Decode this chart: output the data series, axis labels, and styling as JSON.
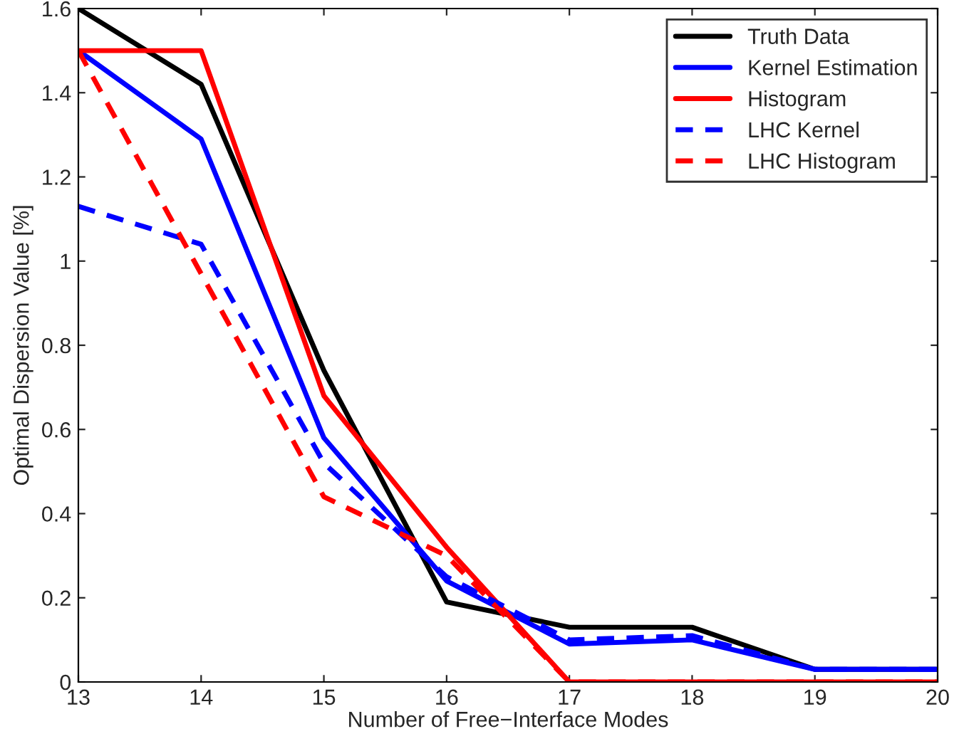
{
  "chart_data": {
    "type": "line",
    "xlabel": "Number of Free−Interface Modes",
    "ylabel": "Optimal Dispersion Value [%]",
    "x": [
      13,
      14,
      15,
      16,
      17,
      18,
      19,
      20
    ],
    "xlim": [
      13,
      20
    ],
    "xticks": [
      13,
      14,
      15,
      16,
      17,
      18,
      19,
      20
    ],
    "ylim": [
      0,
      1.6
    ],
    "yticks": [
      0,
      0.2,
      0.4,
      0.6,
      0.8,
      1,
      1.2,
      1.4,
      1.6
    ],
    "grid": false,
    "legend": "top right",
    "series": [
      {
        "name": "Truth Data",
        "color": "#000000",
        "line_style": "solid",
        "values": [
          1.6,
          1.42,
          0.74,
          0.19,
          0.13,
          0.13,
          0.03,
          0.03
        ]
      },
      {
        "name": "Kernel Estimation",
        "color": "#0000ff",
        "line_style": "solid",
        "values": [
          1.5,
          1.29,
          0.58,
          0.24,
          0.09,
          0.1,
          0.03,
          0.03
        ]
      },
      {
        "name": "Histogram",
        "color": "#ff0000",
        "line_style": "solid",
        "values": [
          1.5,
          1.5,
          0.68,
          0.32,
          0,
          0,
          0,
          0
        ]
      },
      {
        "name": "LHC Kernel",
        "color": "#0000ff",
        "line_style": "dashed",
        "values": [
          1.13,
          1.04,
          0.52,
          0.25,
          0.1,
          0.11,
          0.03,
          0.03
        ]
      },
      {
        "name": "LHC Histogram",
        "color": "#ff0000",
        "line_style": "dashed",
        "values": [
          1.5,
          0.97,
          0.44,
          0.3,
          0,
          0,
          0,
          0
        ]
      }
    ]
  }
}
